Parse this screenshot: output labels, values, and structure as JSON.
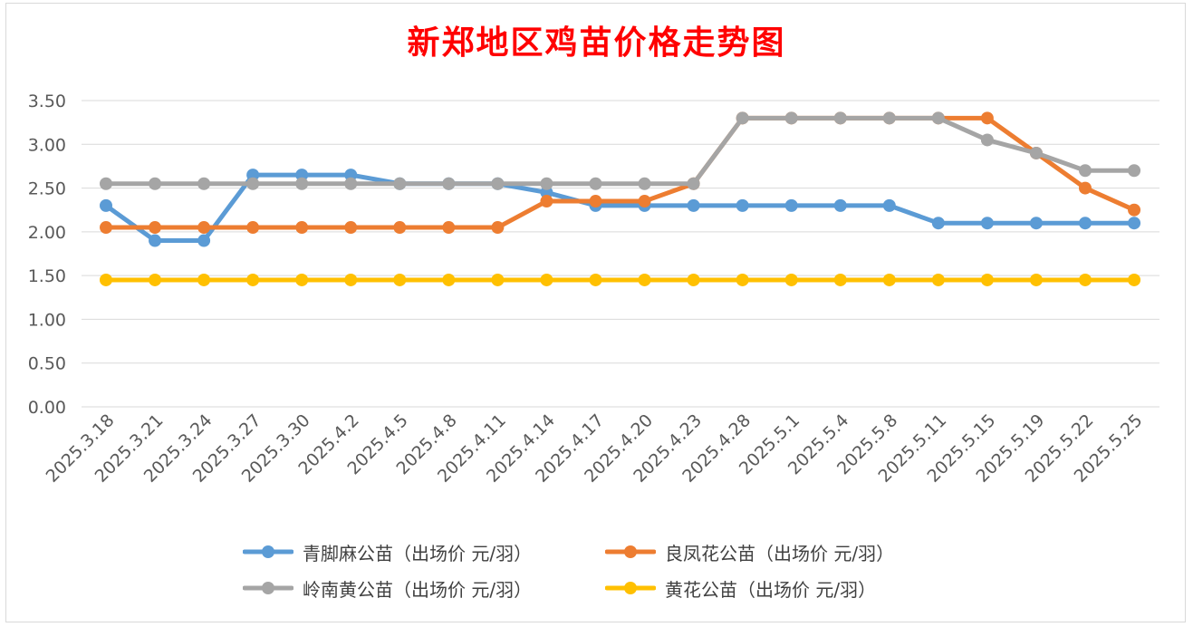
{
  "chart_data": {
    "type": "line",
    "title": "新郑地区鸡苗价格走势图",
    "xlabel": "",
    "ylabel": "",
    "ylim": [
      0,
      3.5
    ],
    "yticks": [
      "0.00",
      "0.50",
      "1.00",
      "1.50",
      "2.00",
      "2.50",
      "3.00",
      "3.50"
    ],
    "grid": true,
    "legend_position": "bottom",
    "categories": [
      "2025.3.18",
      "2025.3.21",
      "2025.3.24",
      "2025.3.27",
      "2025.3.30",
      "2025.4.2",
      "2025.4.5",
      "2025.4.8",
      "2025.4.11",
      "2025.4.14",
      "2025.4.17",
      "2025.4.20",
      "2025.4.23",
      "2025.4.28",
      "2025.5.1",
      "2025.5.4",
      "2025.5.8",
      "2025.5.11",
      "2025.5.15",
      "2025.5.19",
      "2025.5.22",
      "2025.5.25"
    ],
    "series": [
      {
        "name": "青脚麻公苗（出场价 元/羽）",
        "color": "#5b9bd5",
        "values": [
          2.3,
          1.9,
          1.9,
          2.65,
          2.65,
          2.65,
          2.55,
          2.55,
          2.55,
          2.45,
          2.3,
          2.3,
          2.3,
          2.3,
          2.3,
          2.3,
          2.3,
          2.1,
          2.1,
          2.1,
          2.1,
          2.1
        ]
      },
      {
        "name": "良凤花公苗（出场价 元/羽）",
        "color": "#ed7d31",
        "values": [
          2.05,
          2.05,
          2.05,
          2.05,
          2.05,
          2.05,
          2.05,
          2.05,
          2.05,
          2.35,
          2.35,
          2.35,
          2.55,
          3.3,
          3.3,
          3.3,
          3.3,
          3.3,
          3.3,
          2.9,
          2.5,
          2.25
        ]
      },
      {
        "name": "岭南黄公苗（出场价 元/羽）",
        "color": "#a5a5a5",
        "values": [
          2.55,
          2.55,
          2.55,
          2.55,
          2.55,
          2.55,
          2.55,
          2.55,
          2.55,
          2.55,
          2.55,
          2.55,
          2.55,
          3.3,
          3.3,
          3.3,
          3.3,
          3.3,
          3.05,
          2.9,
          2.7,
          2.7
        ]
      },
      {
        "name": "黄花公苗（出场价 元/羽）",
        "color": "#ffc000",
        "values": [
          1.45,
          1.45,
          1.45,
          1.45,
          1.45,
          1.45,
          1.45,
          1.45,
          1.45,
          1.45,
          1.45,
          1.45,
          1.45,
          1.45,
          1.45,
          1.45,
          1.45,
          1.45,
          1.45,
          1.45,
          1.45,
          1.45
        ]
      }
    ]
  }
}
